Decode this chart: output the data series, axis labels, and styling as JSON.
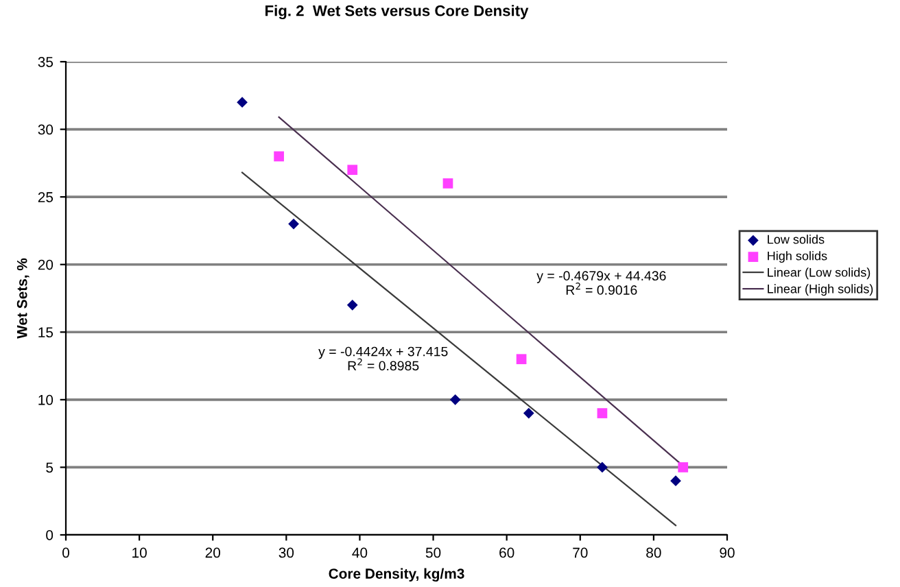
{
  "chart_data": {
    "type": "scatter",
    "title": "Fig. 2  Wet Sets versus Core Density",
    "xlabel": "Core Density, kg/m3",
    "ylabel": "Wet Sets, %",
    "xlim": [
      0,
      90
    ],
    "xticks": [
      0,
      10,
      20,
      30,
      40,
      50,
      60,
      70,
      80,
      90
    ],
    "ylim": [
      0,
      35
    ],
    "yticks": [
      0,
      5,
      10,
      15,
      20,
      25,
      30,
      35
    ],
    "grid": "y",
    "legend": "right",
    "series": [
      {
        "name": "Low solids",
        "color": "#000080",
        "marker": "diamond",
        "x": [
          24,
          31,
          39,
          53,
          63,
          73,
          83
        ],
        "values": [
          32,
          23,
          17,
          10,
          9,
          5,
          4
        ]
      },
      {
        "name": "High solids",
        "color": "#ff40ff",
        "marker": "square",
        "x": [
          29,
          39,
          52,
          62,
          73,
          84
        ],
        "values": [
          28,
          27,
          26,
          13,
          9,
          5
        ]
      },
      {
        "name": "Linear (Low solids)",
        "type": "line",
        "color": "#3a3a3a",
        "x": [
          24,
          83
        ],
        "values": [
          26.8,
          0.7
        ]
      },
      {
        "name": "Linear (High solids)",
        "type": "line",
        "color": "#4a3050",
        "x": [
          29,
          84
        ],
        "values": [
          30.9,
          5.1
        ]
      }
    ],
    "annotations": [
      "y = -0.4424x + 37.415\nR$^{2}$ = 0.8985",
      "y = -0.4679x + 44.436\nR$^{2}$ = 0.9016"
    ]
  }
}
